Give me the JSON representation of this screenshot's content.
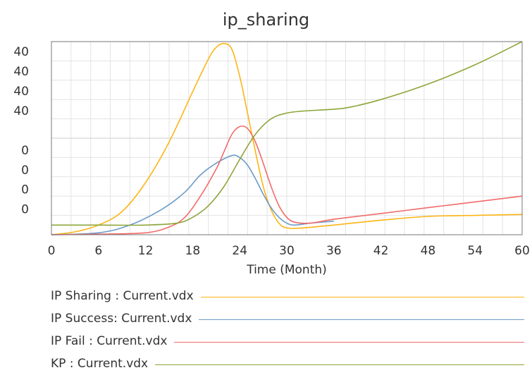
{
  "chart_data": {
    "type": "line",
    "title": "ip_sharing",
    "xlabel": "Time (Month)",
    "xlim": [
      0,
      60
    ],
    "x_ticks": [
      0,
      6,
      12,
      18,
      24,
      30,
      36,
      42,
      48,
      54,
      60
    ],
    "y_tick_labels": [
      "40",
      "40",
      "40",
      "40",
      "",
      "0",
      "0",
      "0",
      "0"
    ],
    "grid": true,
    "legend_position": "bottom",
    "series": [
      {
        "name": "IP Sharing : Current.vdx",
        "color": "#FDB515",
        "x": [
          0,
          3,
          6,
          9,
          12,
          15,
          18,
          20,
          21,
          22,
          23,
          24,
          25,
          26,
          27,
          28,
          29,
          30,
          32,
          36,
          42,
          48,
          54,
          60
        ],
        "y": [
          0,
          0.015,
          0.05,
          0.12,
          0.27,
          0.48,
          0.74,
          0.91,
          0.97,
          0.99,
          0.96,
          0.82,
          0.63,
          0.43,
          0.25,
          0.13,
          0.06,
          0.035,
          0.035,
          0.05,
          0.075,
          0.095,
          0.1,
          0.105
        ]
      },
      {
        "name": "IP Success: Current.vdx",
        "color": "#6B9BC8",
        "x": [
          0,
          6,
          10,
          14,
          17,
          19,
          21,
          23,
          24,
          25,
          26,
          27,
          28,
          29,
          30,
          31,
          33,
          36
        ],
        "y": [
          0,
          0.01,
          0.05,
          0.13,
          0.22,
          0.31,
          0.37,
          0.41,
          0.4,
          0.36,
          0.29,
          0.21,
          0.14,
          0.09,
          0.06,
          0.05,
          0.06,
          0.07
        ]
      },
      {
        "name": "IP Fail : Current.vdx",
        "color": "#F26A6A",
        "x": [
          0,
          6,
          12,
          15,
          17,
          19,
          21,
          22,
          23,
          24,
          25,
          26,
          27,
          28,
          29,
          30,
          31,
          33,
          36,
          42,
          48,
          54,
          60
        ],
        "y": [
          0,
          0.003,
          0.01,
          0.04,
          0.09,
          0.2,
          0.34,
          0.43,
          0.52,
          0.56,
          0.55,
          0.48,
          0.37,
          0.25,
          0.15,
          0.09,
          0.065,
          0.06,
          0.08,
          0.11,
          0.14,
          0.17,
          0.2
        ]
      },
      {
        "name": "KP : Current.vdx",
        "color": "#8DA63A",
        "x": [
          0,
          6,
          12,
          16,
          18,
          20,
          22,
          24,
          26,
          28,
          30,
          32,
          36,
          38,
          42,
          48,
          54,
          60
        ],
        "y": [
          0.05,
          0.05,
          0.05,
          0.06,
          0.09,
          0.15,
          0.25,
          0.39,
          0.52,
          0.6,
          0.63,
          0.64,
          0.65,
          0.66,
          0.7,
          0.78,
          0.88,
          1.0
        ]
      }
    ]
  }
}
